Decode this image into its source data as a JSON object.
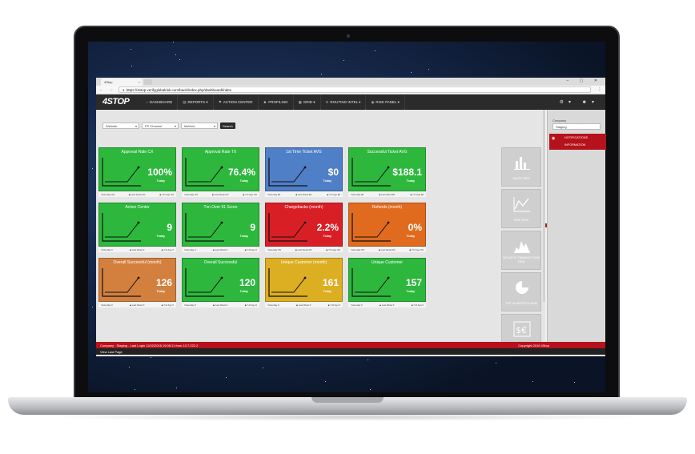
{
  "browser": {
    "tab_title": "4Stop",
    "tab_close": "×",
    "window_controls": "– ▢ ✕",
    "nav_arrows": "← → ↻",
    "url": "https://4stop.verifyglobalrisk.com/back/index.php/dashboard/index",
    "menu": "⋮"
  },
  "app": {
    "logo": "4STOP",
    "nav": [
      {
        "icon": "home-icon",
        "glyph": "⌂",
        "label": "DASHBOARD"
      },
      {
        "icon": "reports-icon",
        "glyph": "▤",
        "label": "REPORTS ▾"
      },
      {
        "icon": "action-center-icon",
        "glyph": "⚑",
        "label": "ACTION CENTER"
      },
      {
        "icon": "profiling-icon",
        "glyph": "☻",
        "label": "PROFILING"
      },
      {
        "icon": "grid-icon",
        "glyph": "▦",
        "label": "GRID ▾"
      },
      {
        "icon": "routing-icon",
        "glyph": "≋",
        "label": "ROUTING INTEL ▾"
      },
      {
        "icon": "risk-panel-icon",
        "glyph": "◉",
        "label": "RISK PANEL ▾"
      }
    ],
    "nav_right": "⚙▾ ☻▾"
  },
  "filters": {
    "website": "Website",
    "pp_channel": "PP Channel",
    "method": "Method",
    "search": "Search",
    "caret": "▾"
  },
  "tiles": [
    {
      "title": "Approval Rate CX",
      "value": "100%",
      "sub": "Today",
      "color": "#2db83d",
      "foot": [
        "Yesterday 0%",
        "◆ Last Week 0%",
        "◆ Y-D Ago 0%"
      ]
    },
    {
      "title": "Approval Rate TX",
      "value": "76.4%",
      "sub": "Today",
      "color": "#2db83d",
      "foot": [
        "Yesterday 0%",
        "◆ Last Week 0%",
        "◆ Y-D Ago 0%"
      ]
    },
    {
      "title": "1st Time Ticket AVG",
      "value": "$0",
      "sub": "Today",
      "color": "#4f7fc6",
      "foot": [
        "Yesterday $0",
        "◆ Last Week $0",
        "◆ Y-D Ago $0"
      ]
    },
    {
      "title": "Successful Ticket AVG",
      "value": "$188.1",
      "sub": "Today",
      "color": "#2db83d",
      "foot": [
        "Yesterday $0",
        "◆ Last Week $0",
        "◆ Y-D Ago $0"
      ]
    },
    {
      "title": "Action Center",
      "value": "9",
      "sub": "Today",
      "color": "#2db83d",
      "foot": [
        "Yesterday 0",
        "◆ Last Week 0",
        "◆ Y-D Ago 0"
      ]
    },
    {
      "title": "Txn Over 91 Score",
      "value": "9",
      "sub": "Today",
      "color": "#2db83d",
      "foot": [
        "Yesterday 0",
        "◆ Last Week 0",
        "◆ Y-D Ago 0"
      ]
    },
    {
      "title": "Chargebacks (month)",
      "value": "2.2%",
      "sub": "Today",
      "color": "#d91f26",
      "foot": [
        "Yesterday 0%",
        "◆ Last Week 0%",
        "◆ Y-D Ago 0%"
      ]
    },
    {
      "title": "Refunds (month)",
      "value": "0%",
      "sub": "Today",
      "color": "#e06b1f",
      "foot": [
        "Yesterday 0%",
        "◆ Last Week 0%",
        "◆ Y-D Ago 0%"
      ]
    },
    {
      "title": "Overall Successful (month)",
      "value": "126",
      "sub": "Today",
      "color": "#d3803f",
      "foot": [
        "Yesterday 0",
        "◆ Last Week 0",
        "◆ Y-D Ago 0"
      ]
    },
    {
      "title": "Overall Successful",
      "value": "120",
      "sub": "Today",
      "color": "#2db83d",
      "foot": [
        "Yesterday 0",
        "◆ Last Week 0",
        "◆ Y-D Ago 0"
      ]
    },
    {
      "title": "Unique Customer (month)",
      "value": "161",
      "sub": "Today",
      "color": "#dcae22",
      "foot": [
        "Yesterday 0",
        "◆ Last Week 0",
        "◆ Y-D Ago 0"
      ]
    },
    {
      "title": "Unique Customer",
      "value": "157",
      "sub": "Today",
      "color": "#2db83d",
      "foot": [
        "Yesterday 0",
        "◆ Last Week 0",
        "◆ Y-D Ago 0"
      ]
    }
  ],
  "views": [
    {
      "label": "SALES VIEW",
      "icon": "bar-chart-icon"
    },
    {
      "label": "RISK VIEW",
      "icon": "line-chart-icon"
    },
    {
      "label": "NEGATIVE TRANSACTIONS VIEW",
      "icon": "area-chart-icon"
    },
    {
      "label": "TOP 10 REPORTS VIEW",
      "icon": "pie-chart-icon"
    },
    {
      "label": "",
      "icon": "currency-icon"
    }
  ],
  "right_panel": {
    "label": "Company",
    "company": "Staging",
    "notifications": "NOTIFICATIONS",
    "information": "INFORMATION"
  },
  "footer": {
    "left": "Company : Staging  -  Last Login 11/02/2016 19:08:11 from 10.7.222.2",
    "right": "Copyright 2016 4Stop",
    "last_page": "View Last Page"
  }
}
